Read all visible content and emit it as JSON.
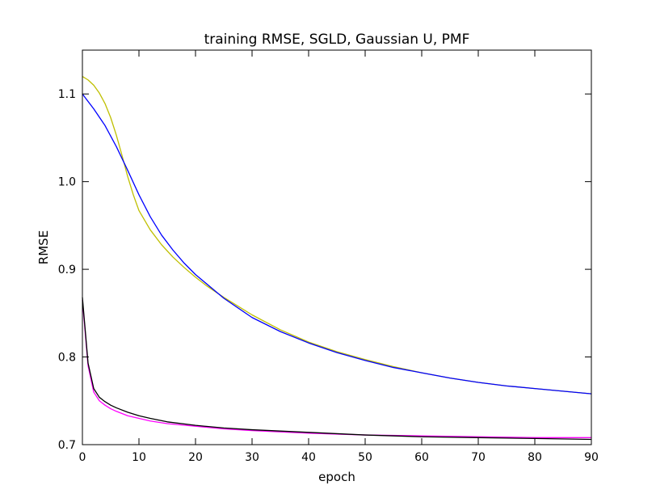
{
  "chart_data": {
    "type": "line",
    "title": "training RMSE, SGLD, Gaussian U, PMF",
    "xlabel": "epoch",
    "ylabel": "RMSE",
    "xlim": [
      0,
      90
    ],
    "ylim": [
      0.7,
      1.15
    ],
    "x_ticks": [
      0,
      10,
      20,
      30,
      40,
      50,
      60,
      70,
      80,
      90
    ],
    "x_tick_labels": [
      "0",
      "10",
      "20",
      "30",
      "40",
      "50",
      "60",
      "70",
      "80",
      "90"
    ],
    "y_ticks": [
      0.7,
      0.8,
      0.9,
      1.0,
      1.1
    ],
    "y_tick_labels": [
      "0.7",
      "0.8",
      "0.9",
      "1.0",
      "1.1"
    ],
    "grid": false,
    "legend": "none",
    "series": [
      {
        "color": "#bfbf00",
        "x": [
          0,
          1,
          2,
          3,
          4,
          5,
          6,
          7,
          8,
          9,
          10,
          12,
          14,
          16,
          18,
          20,
          22,
          25,
          30,
          35,
          40,
          45,
          50,
          55,
          60,
          65,
          70,
          75,
          80,
          85,
          90
        ],
        "y": [
          1.12,
          1.116,
          1.11,
          1.101,
          1.089,
          1.073,
          1.053,
          1.03,
          1.006,
          0.985,
          0.967,
          0.945,
          0.928,
          0.914,
          0.902,
          0.891,
          0.881,
          0.868,
          0.848,
          0.831,
          0.817,
          0.806,
          0.797,
          0.789,
          0.782,
          0.776,
          0.771,
          0.767,
          0.764,
          0.761,
          0.758
        ]
      },
      {
        "color": "#0000ff",
        "x": [
          0,
          2,
          4,
          6,
          8,
          10,
          12,
          14,
          16,
          18,
          20,
          25,
          30,
          35,
          40,
          45,
          50,
          55,
          60,
          65,
          70,
          75,
          80,
          85,
          90
        ],
        "y": [
          1.1,
          1.083,
          1.064,
          1.04,
          1.013,
          0.985,
          0.96,
          0.939,
          0.922,
          0.907,
          0.894,
          0.867,
          0.845,
          0.829,
          0.816,
          0.805,
          0.796,
          0.788,
          0.782,
          0.776,
          0.771,
          0.767,
          0.764,
          0.761,
          0.758
        ]
      },
      {
        "color": "#ff00ff",
        "x": [
          0,
          1,
          2,
          3,
          4,
          5,
          6,
          8,
          10,
          12,
          15,
          20,
          25,
          30,
          40,
          50,
          60,
          70,
          80,
          90
        ],
        "y": [
          0.865,
          0.79,
          0.76,
          0.75,
          0.745,
          0.741,
          0.738,
          0.733,
          0.73,
          0.727,
          0.724,
          0.721,
          0.718,
          0.716,
          0.713,
          0.711,
          0.71,
          0.709,
          0.708,
          0.708
        ]
      },
      {
        "color": "#000000",
        "x": [
          0,
          1,
          2,
          3,
          4,
          5,
          6,
          8,
          10,
          12,
          15,
          20,
          25,
          30,
          40,
          50,
          60,
          70,
          80,
          90
        ],
        "y": [
          0.868,
          0.793,
          0.764,
          0.754,
          0.749,
          0.745,
          0.742,
          0.737,
          0.733,
          0.73,
          0.726,
          0.722,
          0.719,
          0.717,
          0.714,
          0.711,
          0.709,
          0.708,
          0.707,
          0.706
        ]
      }
    ]
  }
}
